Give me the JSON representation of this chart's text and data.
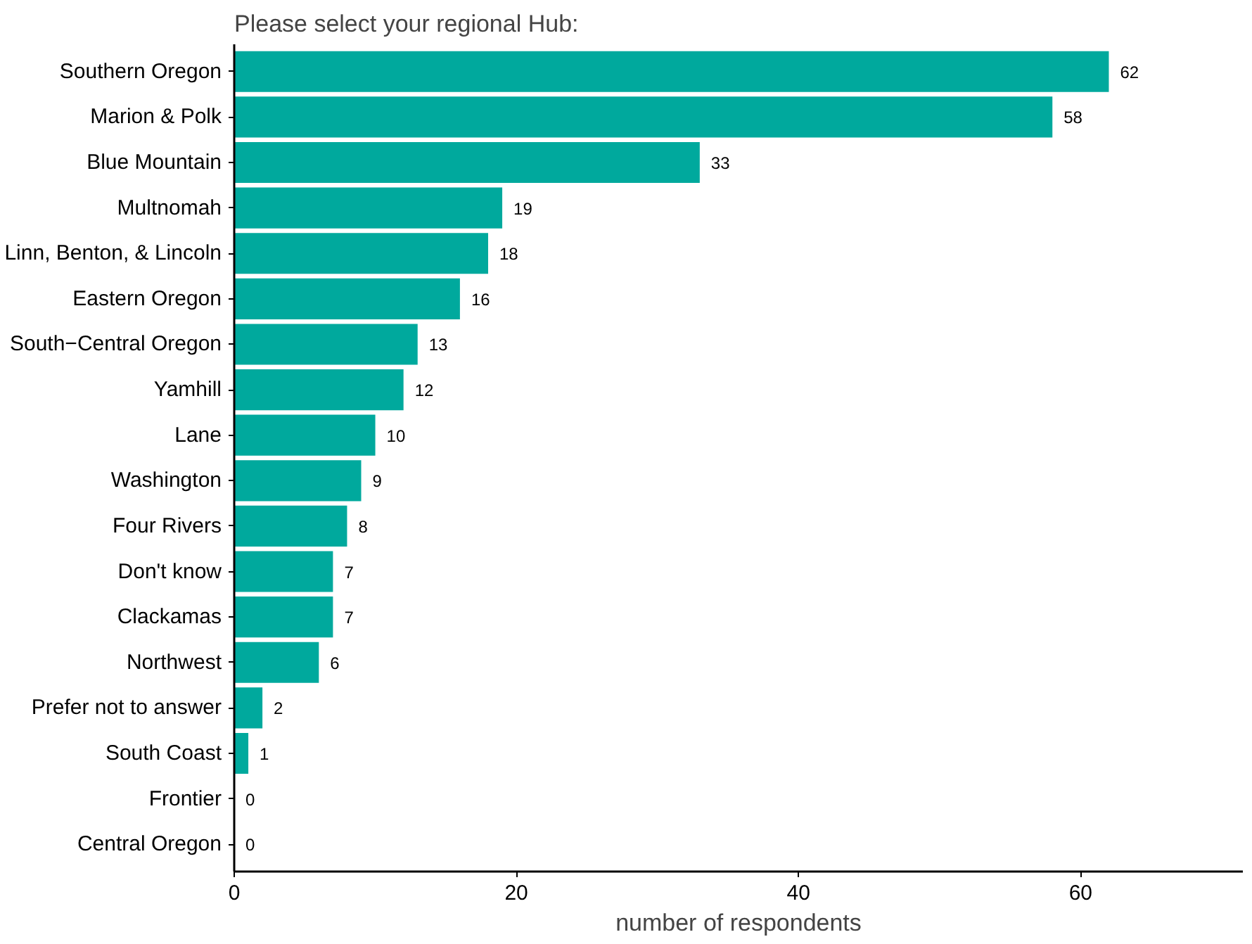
{
  "chart_data": {
    "type": "bar",
    "orientation": "horizontal",
    "title": "Please select your regional Hub:",
    "xlabel": "number of respondents",
    "categories": [
      "Southern Oregon",
      "Marion & Polk",
      "Blue Mountain",
      "Multnomah",
      "Linn, Benton, & Lincoln",
      "Eastern Oregon",
      "South−Central Oregon",
      "Yamhill",
      "Lane",
      "Washington",
      "Four Rivers",
      "Don't know",
      "Clackamas",
      "Northwest",
      "Prefer not to answer",
      "South Coast",
      "Frontier",
      "Central Oregon"
    ],
    "values": [
      62,
      58,
      33,
      19,
      18,
      16,
      13,
      12,
      10,
      9,
      8,
      7,
      7,
      6,
      2,
      1,
      0,
      0
    ],
    "color": "#00a99d",
    "xlim": [
      0,
      71.5
    ],
    "xticks": [
      0,
      20,
      40,
      60
    ],
    "grid": false,
    "data_labels": true
  }
}
